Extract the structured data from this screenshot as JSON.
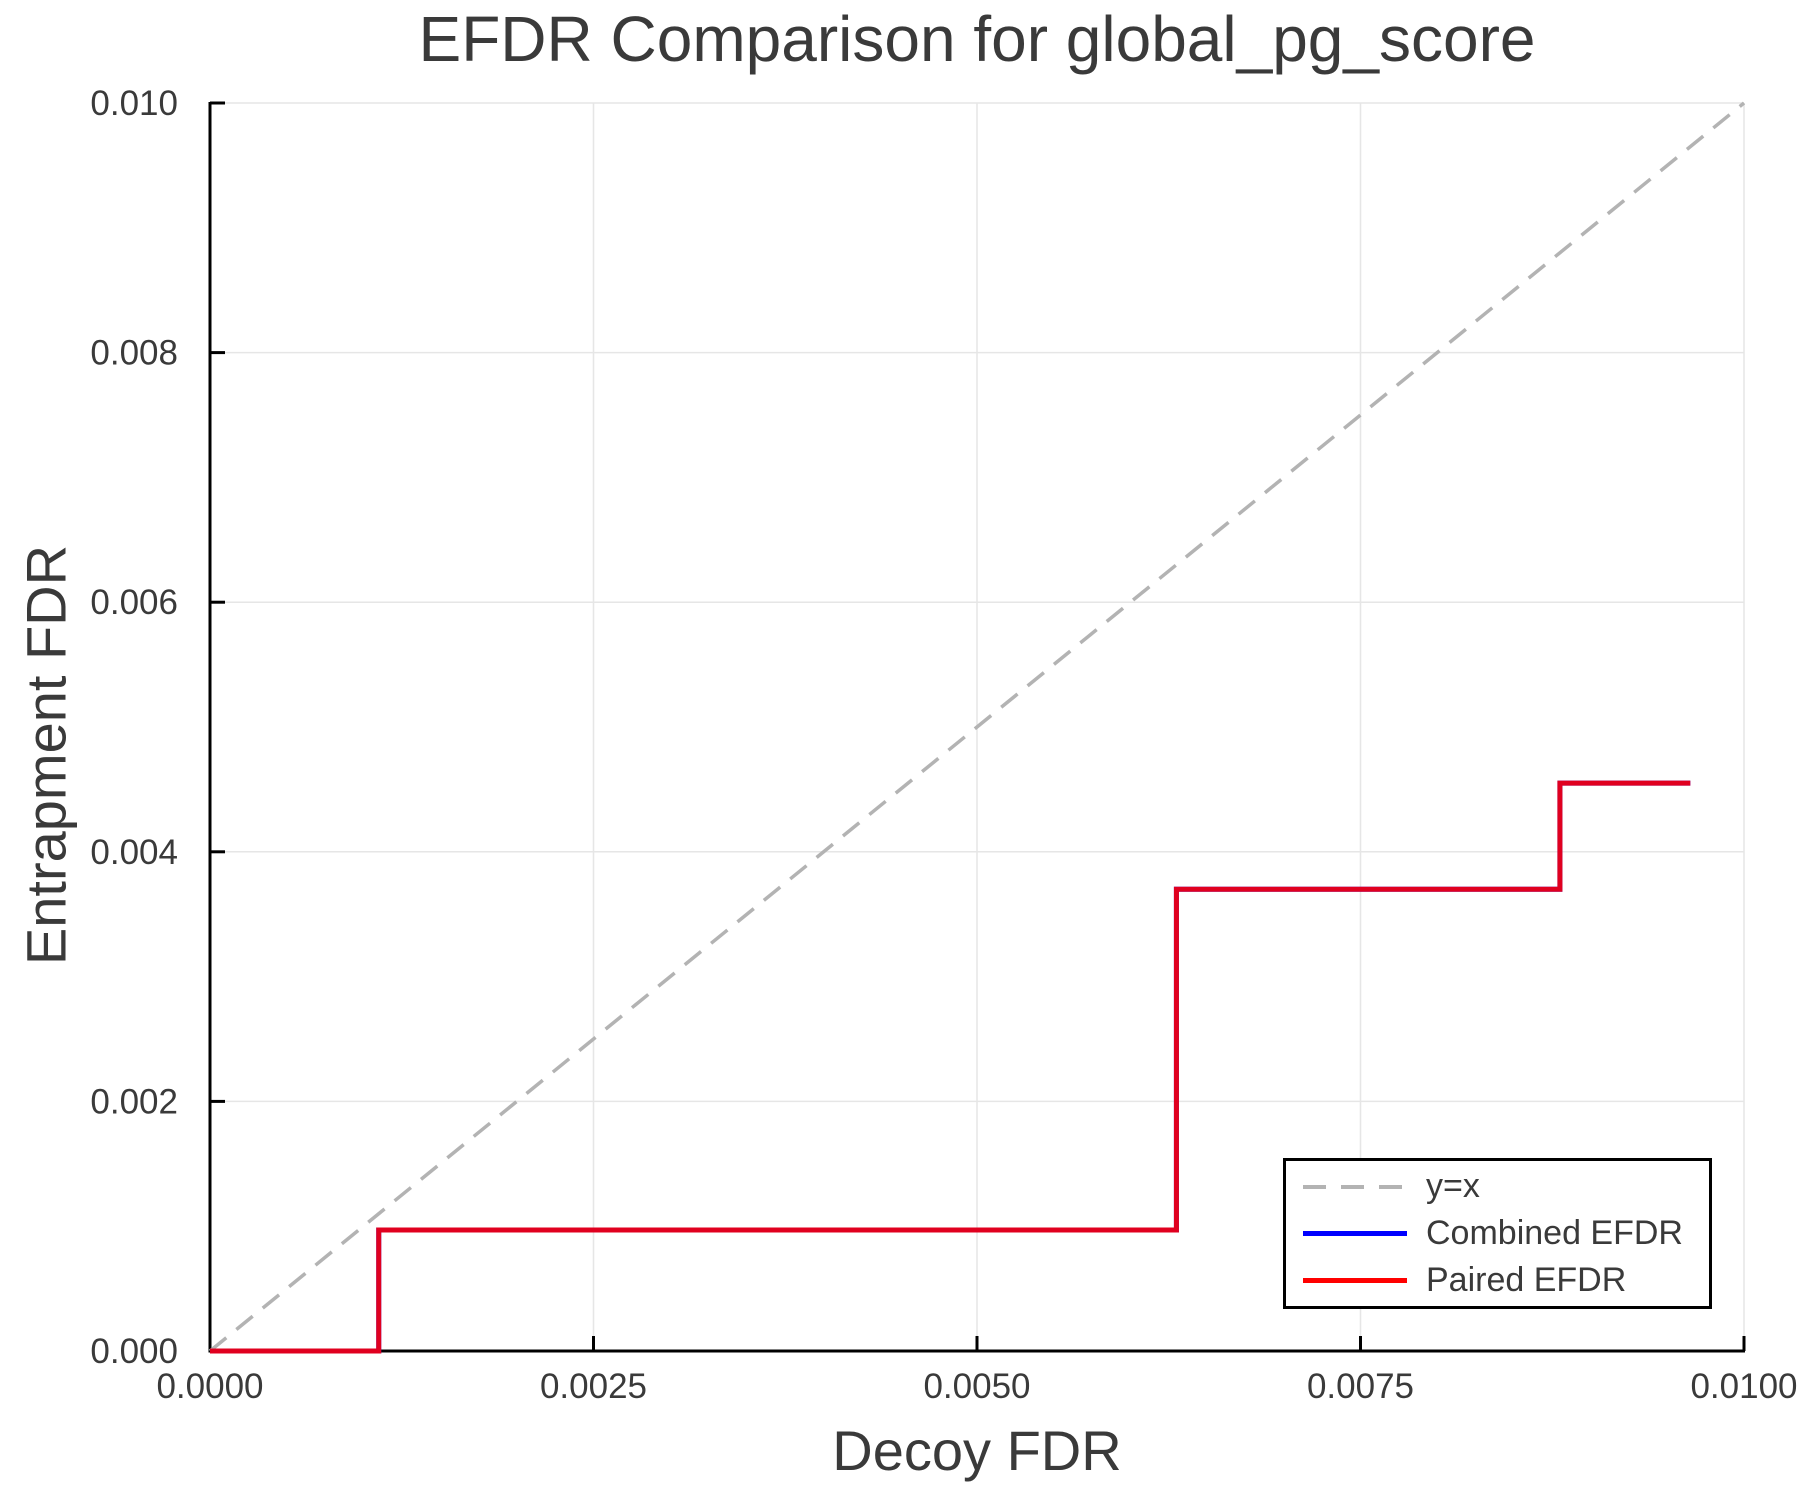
{
  "chart_data": {
    "type": "line",
    "title": "EFDR Comparison for global_pg_score",
    "xlabel": "Decoy FDR",
    "ylabel": "Entrapment FDR",
    "xlim": [
      0.0,
      0.01
    ],
    "ylim": [
      0.0,
      0.01
    ],
    "grid": true,
    "legend_position": "lower right",
    "x_ticks": {
      "values": [
        0.0,
        0.0025,
        0.005,
        0.0075,
        0.01
      ],
      "labels": [
        "0.0000",
        "0.0025",
        "0.0050",
        "0.0075",
        "0.0100"
      ]
    },
    "y_ticks": {
      "values": [
        0.0,
        0.002,
        0.004,
        0.006,
        0.008,
        0.01
      ],
      "labels": [
        "0.000",
        "0.002",
        "0.004",
        "0.006",
        "0.008",
        "0.010"
      ]
    },
    "colors": {
      "grid": "#e6e6e6",
      "spine": "#000000",
      "text": "#3a3a3a",
      "legend_border": "#000000",
      "background": "#ffffff"
    },
    "series": [
      {
        "name": "y=x",
        "style": "dashed",
        "color": "#b3b3b3",
        "points": [
          [
            0.0,
            0.0
          ],
          [
            0.01,
            0.01
          ]
        ]
      },
      {
        "name": "Combined EFDR",
        "style": "solid",
        "color": "#0000ff",
        "points": [
          [
            0.0,
            0.0
          ],
          [
            0.0011,
            0.0
          ],
          [
            0.0011,
            0.00097
          ],
          [
            0.0063,
            0.00097
          ],
          [
            0.0063,
            0.0037
          ],
          [
            0.0088,
            0.0037
          ],
          [
            0.0088,
            0.00455
          ],
          [
            0.00965,
            0.00455
          ]
        ]
      },
      {
        "name": "Paired EFDR",
        "style": "solid",
        "color": "#ff0000",
        "points": [
          [
            0.0,
            0.0
          ],
          [
            0.0011,
            0.0
          ],
          [
            0.0011,
            0.00097
          ],
          [
            0.0063,
            0.00097
          ],
          [
            0.0063,
            0.0037
          ],
          [
            0.0088,
            0.0037
          ],
          [
            0.0088,
            0.00455
          ],
          [
            0.00965,
            0.00455
          ]
        ]
      }
    ]
  }
}
